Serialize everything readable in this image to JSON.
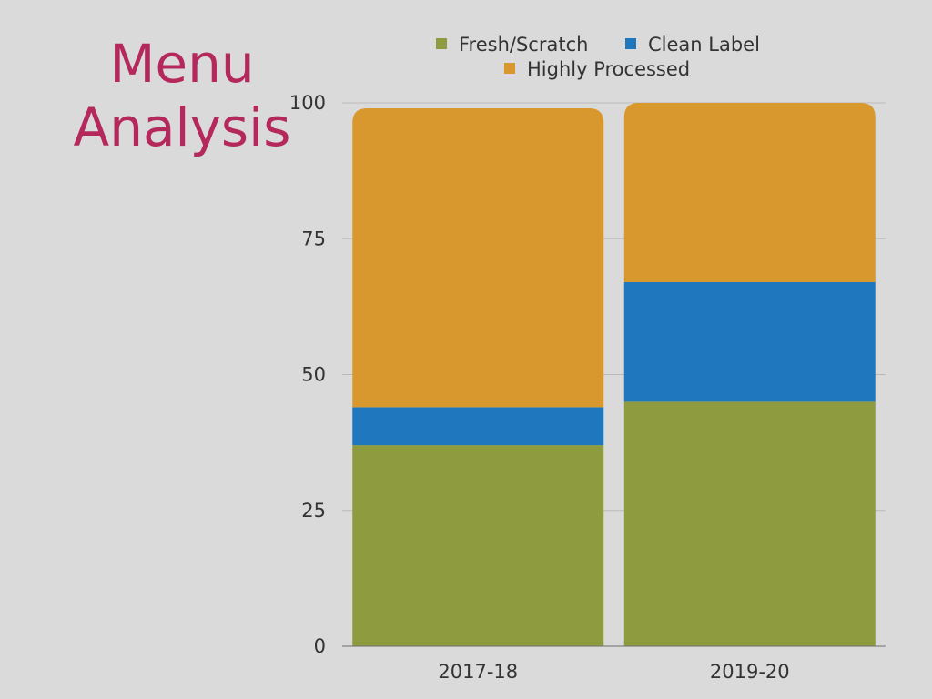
{
  "title": {
    "line1": "Menu",
    "line2": "Analysis"
  },
  "chart_data": {
    "type": "bar",
    "stacked": true,
    "categories": [
      "2017-18",
      "2019-20"
    ],
    "series": [
      {
        "name": "Fresh/Scratch",
        "color": "#8f9b3f",
        "values": [
          37,
          45
        ]
      },
      {
        "name": "Clean Label",
        "color": "#1f78be",
        "values": [
          7,
          22
        ]
      },
      {
        "name": "Highly Processed",
        "color": "#d9982e",
        "values": [
          55,
          33
        ]
      }
    ],
    "ylim": [
      0,
      100
    ],
    "yticks": [
      0,
      25,
      50,
      75,
      100
    ],
    "grid": true,
    "legend_position": "top"
  }
}
